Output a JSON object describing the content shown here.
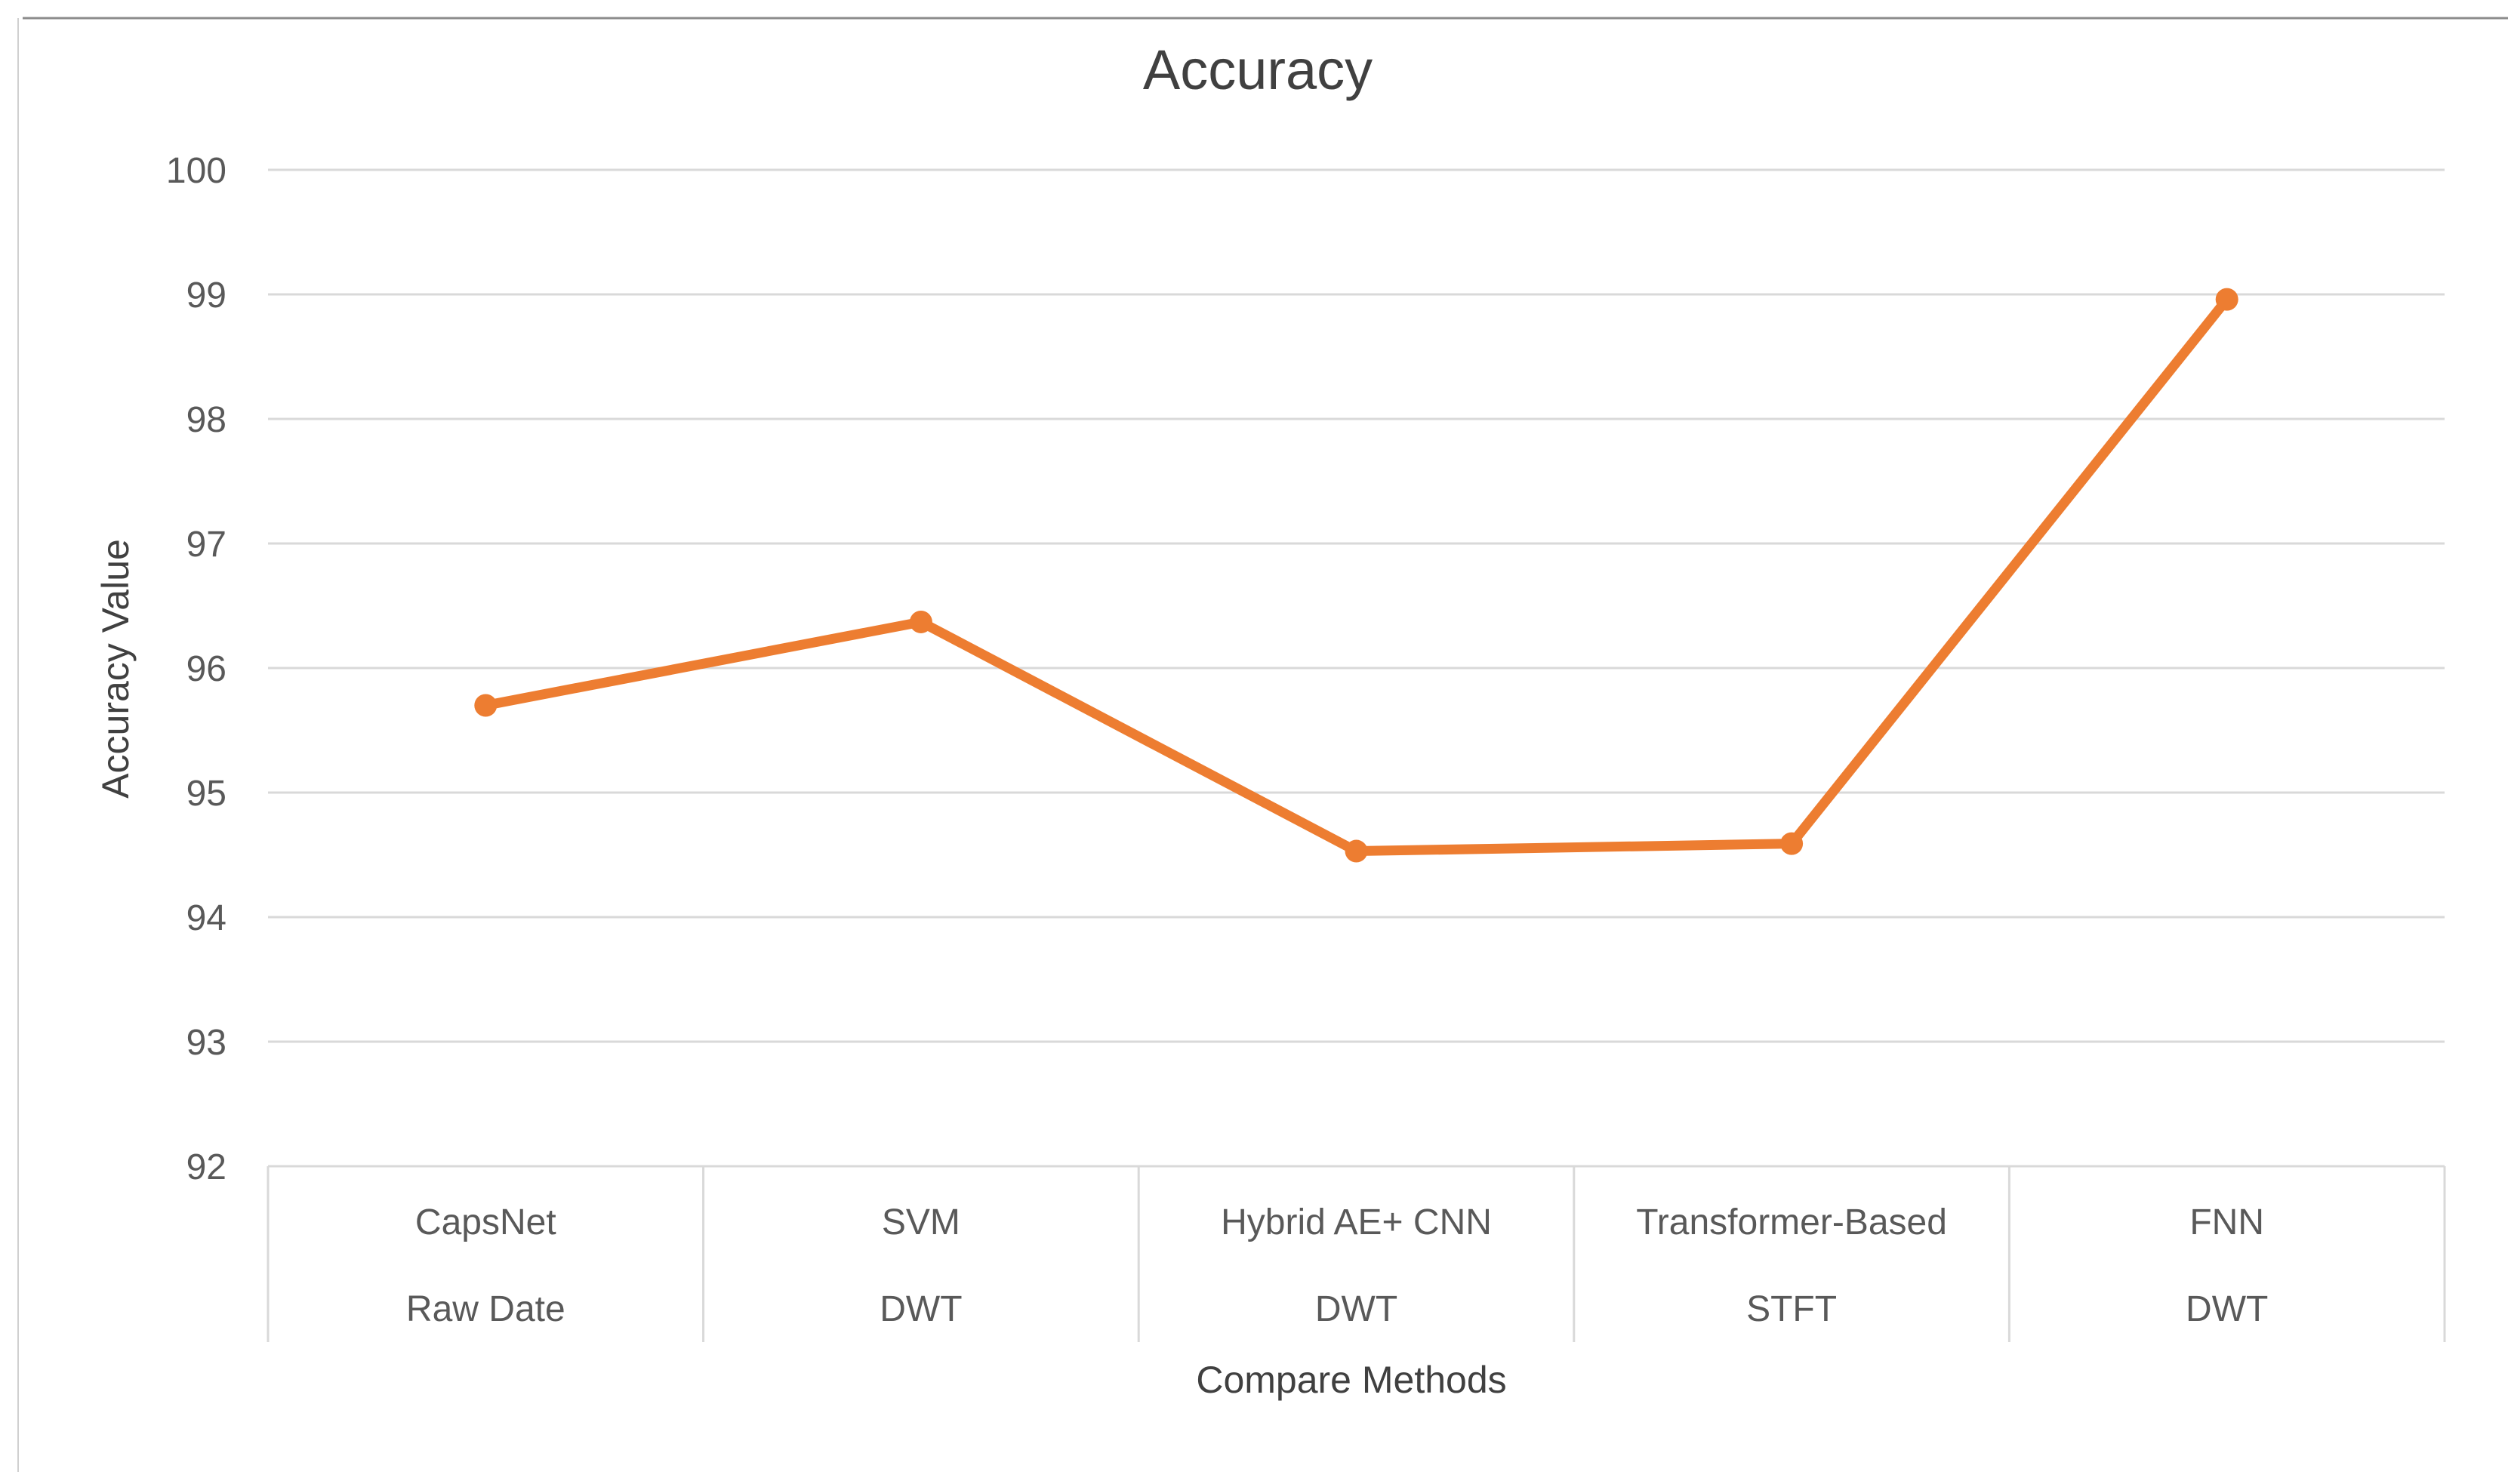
{
  "chart_data": {
    "type": "line",
    "title": "Accuracy",
    "xlabel": "Compare Methods",
    "ylabel": "Accuracy Value",
    "categories": [
      {
        "method": "CapsNet",
        "feature": "Raw Date"
      },
      {
        "method": "SVM",
        "feature": "DWT"
      },
      {
        "method": "Hybrid AE+ CNN",
        "feature": "DWT"
      },
      {
        "method": "Transformer-Based",
        "feature": "STFT"
      },
      {
        "method": "FNN",
        "feature": "DWT"
      }
    ],
    "series": [
      {
        "values": [
          95.7,
          96.37,
          94.53,
          94.59,
          98.96
        ],
        "color": "#ED7D31"
      }
    ],
    "ylim": [
      92,
      100
    ],
    "yticks": [
      92,
      93,
      94,
      95,
      96,
      97,
      98,
      99,
      100
    ],
    "grid": true,
    "legend": "none"
  }
}
